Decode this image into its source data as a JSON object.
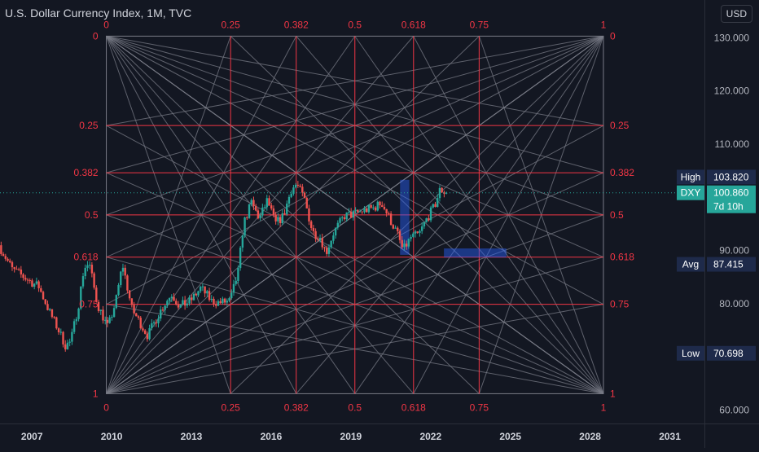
{
  "header": {
    "title": "U.S. Dollar Currency Index, 1M, TVC",
    "currency": "USD"
  },
  "colors": {
    "background": "#131722",
    "fib_line": "#f23645",
    "fan_line": "#787b86",
    "candle_up": "#26a69a",
    "candle_down": "#ef5350",
    "highlight": "#2962ff",
    "tag_bg": "#1e2a4a",
    "price_tag": "#26a69a"
  },
  "chart_data": {
    "type": "candlestick",
    "symbol": "DXY",
    "timeframe": "1M",
    "x_tick_labels": [
      "2007",
      "2010",
      "2013",
      "2016",
      "2019",
      "2022",
      "2025",
      "2028",
      "2031"
    ],
    "x_tick_years": [
      2007,
      2010,
      2013,
      2016,
      2019,
      2022,
      2025,
      2028,
      2031
    ],
    "y_tick_labels": [
      "130.000",
      "120.000",
      "110.000",
      "90.000",
      "80.000",
      "60.000"
    ],
    "y_tick_values": [
      130,
      120,
      110,
      90,
      80,
      60
    ],
    "y_range": [
      57.5,
      132.5
    ],
    "x_range": [
      2005.8,
      2032.3
    ],
    "price_tags": [
      {
        "label": "High",
        "value_text": "103.820",
        "value": 103.82
      },
      {
        "label": "DXY",
        "value_text": "100.860",
        "value": 100.86,
        "countdown": "7d 10h"
      },
      {
        "label": "Avg",
        "value_text": "87.415",
        "value": 87.415
      },
      {
        "label": "Low",
        "value_text": "70.698",
        "value": 70.698
      }
    ],
    "gann_box": {
      "x_start": 2009.8,
      "x_end": 2028.5,
      "y_top": 130.3,
      "y_bottom": 63.1,
      "levels": [
        0,
        0.25,
        0.382,
        0.5,
        0.618,
        0.75,
        1
      ],
      "level_labels": [
        "0",
        "0.25",
        "0.382",
        "0.5",
        "0.618",
        "0.75",
        "1"
      ],
      "vertical_levels_drawn": [
        0.25,
        0.382,
        0.5,
        0.618,
        0.75
      ],
      "horizontal_levels_drawn": [
        0.25,
        0.382,
        0.5,
        0.618,
        0.75
      ]
    },
    "highlight_boxes": [
      {
        "x0": 2020.85,
        "x1": 2021.2,
        "y0": 89.2,
        "y1": 103.3
      },
      {
        "x0": 2022.5,
        "x1": 2024.85,
        "y0": 88.7,
        "y1": 90.4
      }
    ],
    "price_path": [
      {
        "x": 2005.8,
        "y": 91.0
      },
      {
        "x": 2006.3,
        "y": 86.5
      },
      {
        "x": 2006.9,
        "y": 84.5
      },
      {
        "x": 2007.3,
        "y": 83.2
      },
      {
        "x": 2007.7,
        "y": 78.5
      },
      {
        "x": 2008.0,
        "y": 75.5
      },
      {
        "x": 2008.3,
        "y": 72.2
      },
      {
        "x": 2008.5,
        "y": 72.8
      },
      {
        "x": 2008.8,
        "y": 80.0
      },
      {
        "x": 2009.0,
        "y": 86.8
      },
      {
        "x": 2009.2,
        "y": 87.5
      },
      {
        "x": 2009.5,
        "y": 80.0
      },
      {
        "x": 2009.9,
        "y": 75.5
      },
      {
        "x": 2010.2,
        "y": 80.5
      },
      {
        "x": 2010.45,
        "y": 87.5
      },
      {
        "x": 2010.8,
        "y": 79.0
      },
      {
        "x": 2011.1,
        "y": 76.5
      },
      {
        "x": 2011.4,
        "y": 74.0
      },
      {
        "x": 2011.7,
        "y": 77.0
      },
      {
        "x": 2012.0,
        "y": 79.8
      },
      {
        "x": 2012.3,
        "y": 81.8
      },
      {
        "x": 2012.6,
        "y": 79.5
      },
      {
        "x": 2013.0,
        "y": 80.5
      },
      {
        "x": 2013.4,
        "y": 83.0
      },
      {
        "x": 2013.8,
        "y": 80.5
      },
      {
        "x": 2014.1,
        "y": 80.2
      },
      {
        "x": 2014.5,
        "y": 80.5
      },
      {
        "x": 2014.8,
        "y": 86.0
      },
      {
        "x": 2015.0,
        "y": 95.0
      },
      {
        "x": 2015.3,
        "y": 99.0
      },
      {
        "x": 2015.6,
        "y": 96.0
      },
      {
        "x": 2015.9,
        "y": 99.5
      },
      {
        "x": 2016.2,
        "y": 95.0
      },
      {
        "x": 2016.5,
        "y": 96.5
      },
      {
        "x": 2016.8,
        "y": 101.5
      },
      {
        "x": 2017.0,
        "y": 102.5
      },
      {
        "x": 2017.3,
        "y": 99.5
      },
      {
        "x": 2017.6,
        "y": 93.5
      },
      {
        "x": 2017.9,
        "y": 92.5
      },
      {
        "x": 2018.1,
        "y": 89.5
      },
      {
        "x": 2018.4,
        "y": 93.5
      },
      {
        "x": 2018.8,
        "y": 96.5
      },
      {
        "x": 2019.1,
        "y": 96.8
      },
      {
        "x": 2019.5,
        "y": 97.5
      },
      {
        "x": 2019.9,
        "y": 98.0
      },
      {
        "x": 2020.2,
        "y": 99.0
      },
      {
        "x": 2020.5,
        "y": 96.0
      },
      {
        "x": 2020.8,
        "y": 93.0
      },
      {
        "x": 2021.0,
        "y": 90.0
      },
      {
        "x": 2021.3,
        "y": 92.5
      },
      {
        "x": 2021.6,
        "y": 93.0
      },
      {
        "x": 2021.9,
        "y": 96.0
      },
      {
        "x": 2022.2,
        "y": 98.5
      },
      {
        "x": 2022.4,
        "y": 101.5
      },
      {
        "x": 2022.6,
        "y": 100.86
      }
    ]
  }
}
